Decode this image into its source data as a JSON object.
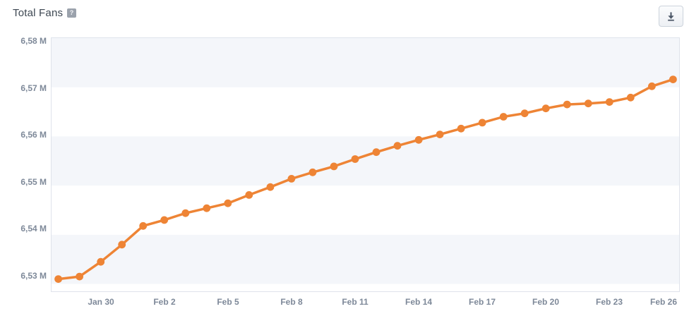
{
  "header": {
    "title": "Total Fans",
    "help_glyph": "?"
  },
  "chart_data": {
    "type": "line",
    "title": "Total Fans",
    "unit": "M",
    "legend": "none",
    "markers": true,
    "x": [
      "Jan 28",
      "Jan 29",
      "Jan 30",
      "Jan 31",
      "Feb 1",
      "Feb 2",
      "Feb 3",
      "Feb 4",
      "Feb 5",
      "Feb 6",
      "Feb 7",
      "Feb 8",
      "Feb 9",
      "Feb 10",
      "Feb 11",
      "Feb 12",
      "Feb 13",
      "Feb 14",
      "Feb 15",
      "Feb 16",
      "Feb 17",
      "Feb 18",
      "Feb 19",
      "Feb 20",
      "Feb 21",
      "Feb 22",
      "Feb 23",
      "Feb 24",
      "Feb 25",
      "Feb 26"
    ],
    "values": [
      6.531,
      6.5315,
      6.5345,
      6.538,
      6.5418,
      6.543,
      6.5444,
      6.5454,
      6.5464,
      6.5481,
      6.5497,
      6.5514,
      6.5527,
      6.5539,
      6.5554,
      6.5568,
      6.5581,
      6.5593,
      6.5604,
      6.5616,
      6.5628,
      6.564,
      6.5647,
      6.5657,
      6.5665,
      6.5667,
      6.567,
      6.5679,
      6.5702,
      6.5716
    ],
    "y_tick_labels": [
      "6,58 M",
      "6,57 M",
      "6,56 M",
      "6,55 M",
      "6,54 M",
      "6,53 M"
    ],
    "y_ticks": [
      6.58,
      6.57,
      6.56,
      6.55,
      6.54,
      6.53
    ],
    "x_ticks": [
      {
        "label": "Jan 30",
        "index": 2
      },
      {
        "label": "Feb 2",
        "index": 5
      },
      {
        "label": "Feb 5",
        "index": 8
      },
      {
        "label": "Feb 8",
        "index": 11
      },
      {
        "label": "Feb 11",
        "index": 14
      },
      {
        "label": "Feb 14",
        "index": 17
      },
      {
        "label": "Feb 17",
        "index": 20
      },
      {
        "label": "Feb 20",
        "index": 23
      },
      {
        "label": "Feb 23",
        "index": 26
      },
      {
        "label": "Feb 26",
        "index": 29
      }
    ],
    "axis": {
      "ymin": 6.5285,
      "ymax": 6.58,
      "band_tops": [
        6.58,
        6.56,
        6.54
      ],
      "grid": "alternating-bands"
    },
    "style": {
      "line_color": "#ee8435",
      "band_color": "#f4f6fa",
      "plot_border_color": "#dfe3eb",
      "axis_text_color": "#7e8999",
      "title_color": "#3d4752",
      "icon_color": "#4d5868"
    }
  }
}
